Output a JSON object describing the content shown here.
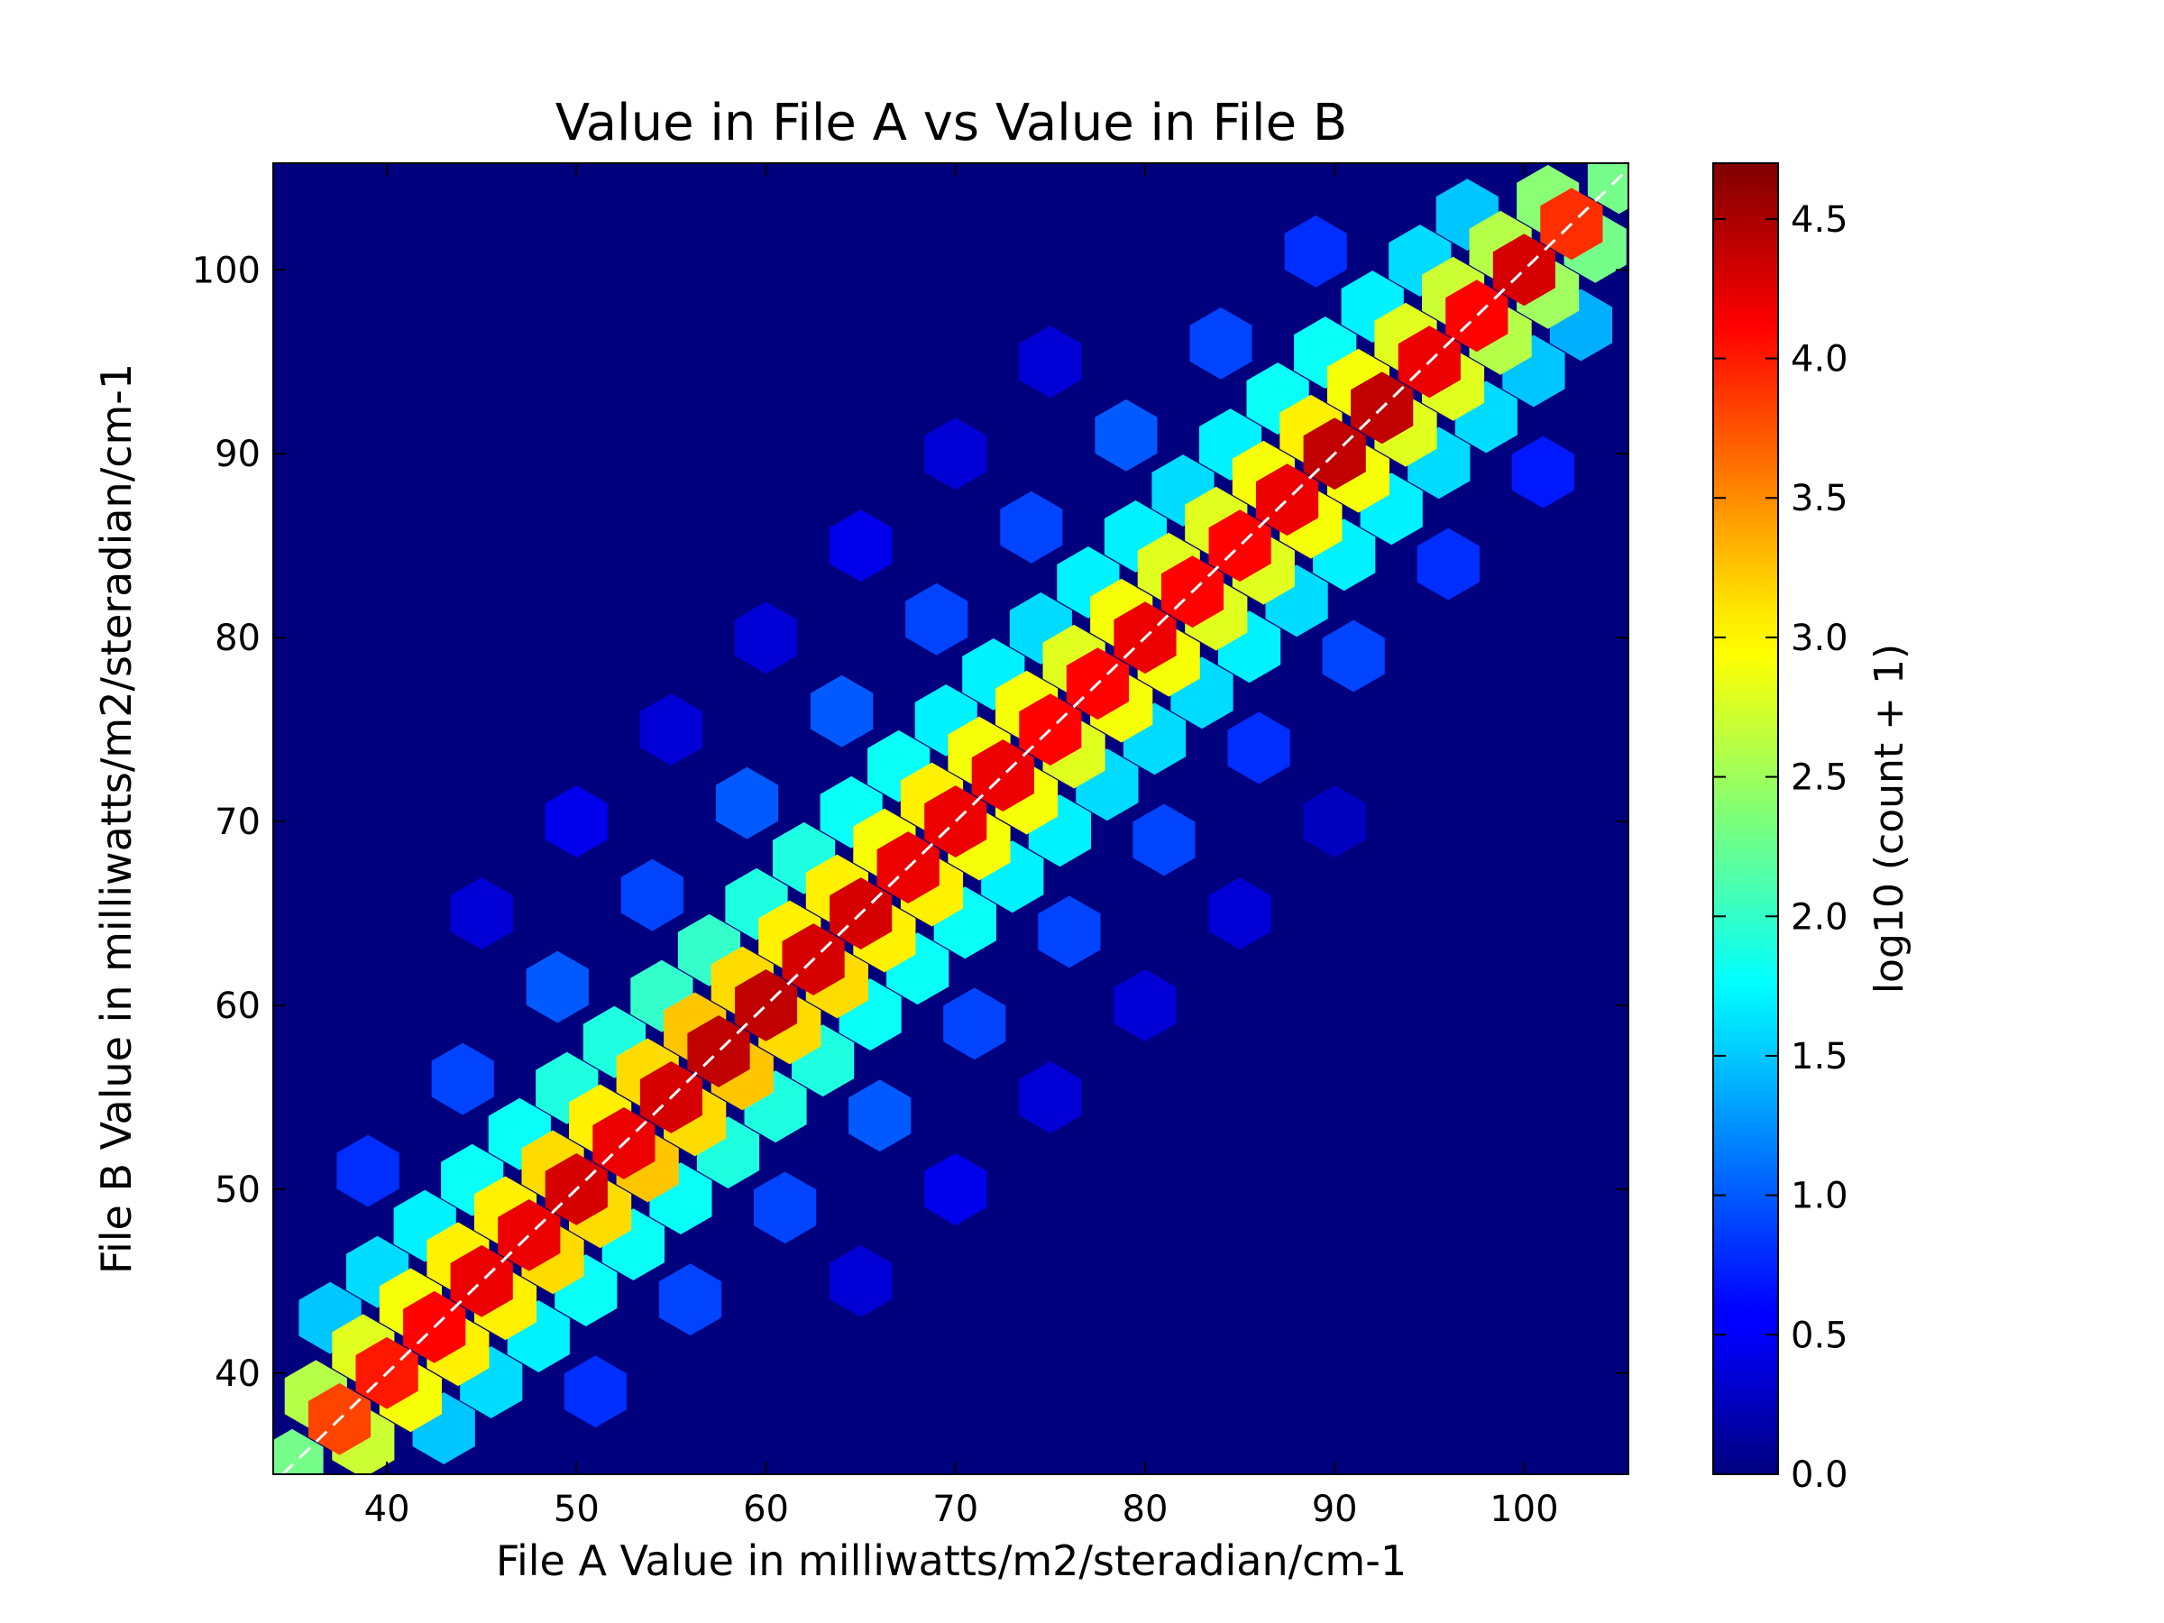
{
  "chart_data": {
    "type": "hexbin",
    "title": "Value in File A vs Value in File B",
    "x_label": "File A Value in milliwatts/m2/steradian/cm-1",
    "y_label": "File B Value in milliwatts/m2/steradian/cm-1",
    "colorbar_label": "log10 (count + 1)",
    "colormap": "jet",
    "background": "#00007f",
    "xlim": [
      34,
      105.5
    ],
    "ylim": [
      34.5,
      105.8
    ],
    "xticks": [
      40,
      50,
      60,
      70,
      80,
      90,
      100
    ],
    "yticks": [
      40,
      50,
      60,
      70,
      80,
      90,
      100
    ],
    "clim": [
      0,
      4.7
    ],
    "cticks": [
      {
        "value": 0,
        "label": "0.0"
      },
      {
        "value": 0.5,
        "label": "0.5"
      },
      {
        "value": 1,
        "label": "1.0"
      },
      {
        "value": 1.5,
        "label": "1.5"
      },
      {
        "value": 2,
        "label": "2.0"
      },
      {
        "value": 2.5,
        "label": "2.5"
      },
      {
        "value": 3,
        "label": "3.0"
      },
      {
        "value": 3.5,
        "label": "3.5"
      },
      {
        "value": 4,
        "label": "4.0"
      },
      {
        "value": 4.5,
        "label": "4.5"
      }
    ],
    "cells": [
      [
        45,
        65,
        0.4
      ],
      [
        50,
        70,
        0.5
      ],
      [
        55,
        75,
        0.4
      ],
      [
        60,
        80,
        0.4
      ],
      [
        65,
        85,
        0.5
      ],
      [
        70,
        90,
        0.4
      ],
      [
        75,
        95,
        0.4
      ],
      [
        65,
        45,
        0.4
      ],
      [
        70,
        50,
        0.5
      ],
      [
        75,
        55,
        0.4
      ],
      [
        80,
        60,
        0.4
      ],
      [
        85,
        65,
        0.4
      ],
      [
        90,
        70,
        0.3
      ],
      [
        39,
        51,
        0.8
      ],
      [
        44,
        56,
        0.9
      ],
      [
        49,
        61,
        1.0
      ],
      [
        54,
        66,
        0.9
      ],
      [
        59,
        71,
        1.0
      ],
      [
        64,
        76,
        1.0
      ],
      [
        69,
        81,
        0.9
      ],
      [
        74,
        86,
        0.9
      ],
      [
        79,
        91,
        1.0
      ],
      [
        84,
        96,
        0.9
      ],
      [
        89,
        101,
        0.8
      ],
      [
        51,
        39,
        0.8
      ],
      [
        56,
        44,
        0.9
      ],
      [
        61,
        49,
        0.9
      ],
      [
        66,
        54,
        1.0
      ],
      [
        71,
        59,
        0.9
      ],
      [
        76,
        64,
        0.9
      ],
      [
        81,
        69,
        0.9
      ],
      [
        86,
        74,
        0.8
      ],
      [
        91,
        79,
        0.9
      ],
      [
        96,
        84,
        0.8
      ],
      [
        101,
        89,
        0.7
      ],
      [
        37,
        43,
        1.5
      ],
      [
        39.5,
        45.5,
        1.6
      ],
      [
        42,
        48,
        1.7
      ],
      [
        44.5,
        50.5,
        1.8
      ],
      [
        47,
        53,
        1.8
      ],
      [
        49.5,
        55.5,
        1.9
      ],
      [
        52,
        58,
        1.9
      ],
      [
        54.5,
        60.5,
        2.0
      ],
      [
        57,
        63,
        2.0
      ],
      [
        59.5,
        65.5,
        1.9
      ],
      [
        62,
        68,
        1.9
      ],
      [
        64.5,
        70.5,
        1.8
      ],
      [
        67,
        73,
        1.8
      ],
      [
        69.5,
        75.5,
        1.7
      ],
      [
        72,
        78,
        1.7
      ],
      [
        74.5,
        80.5,
        1.6
      ],
      [
        77,
        83,
        1.7
      ],
      [
        79.5,
        85.5,
        1.7
      ],
      [
        82,
        88,
        1.6
      ],
      [
        84.5,
        90.5,
        1.7
      ],
      [
        87,
        93,
        1.8
      ],
      [
        89.5,
        95.5,
        1.8
      ],
      [
        92,
        98,
        1.7
      ],
      [
        94.5,
        100.5,
        1.6
      ],
      [
        97,
        103,
        1.5
      ],
      [
        43,
        37,
        1.5
      ],
      [
        45.5,
        39.5,
        1.6
      ],
      [
        48,
        42,
        1.7
      ],
      [
        50.5,
        44.5,
        1.8
      ],
      [
        53,
        47,
        1.8
      ],
      [
        55.5,
        49.5,
        1.8
      ],
      [
        58,
        52,
        1.9
      ],
      [
        60.5,
        54.5,
        1.9
      ],
      [
        63,
        57,
        1.9
      ],
      [
        65.5,
        59.5,
        1.8
      ],
      [
        68,
        62,
        1.8
      ],
      [
        70.5,
        64.5,
        1.8
      ],
      [
        73,
        67,
        1.7
      ],
      [
        75.5,
        69.5,
        1.7
      ],
      [
        78,
        72,
        1.6
      ],
      [
        80.5,
        74.5,
        1.6
      ],
      [
        83,
        77,
        1.6
      ],
      [
        85.5,
        79.5,
        1.7
      ],
      [
        88,
        82,
        1.6
      ],
      [
        90.5,
        84.5,
        1.7
      ],
      [
        93,
        87,
        1.7
      ],
      [
        95.5,
        89.5,
        1.6
      ],
      [
        98,
        92,
        1.6
      ],
      [
        100.5,
        94.5,
        1.5
      ],
      [
        103,
        97,
        1.4
      ],
      [
        36.25,
        38.75,
        2.6
      ],
      [
        38.75,
        41.25,
        2.8
      ],
      [
        41.25,
        43.75,
        2.9
      ],
      [
        43.75,
        46.25,
        3.0
      ],
      [
        46.25,
        48.75,
        3.0
      ],
      [
        48.75,
        51.25,
        3.1
      ],
      [
        51.25,
        53.75,
        3.0
      ],
      [
        53.75,
        56.25,
        3.1
      ],
      [
        56.25,
        58.75,
        3.2
      ],
      [
        58.75,
        61.25,
        3.1
      ],
      [
        61.25,
        63.75,
        3.0
      ],
      [
        63.75,
        66.25,
        3.0
      ],
      [
        66.25,
        68.75,
        2.9
      ],
      [
        68.75,
        71.25,
        3.0
      ],
      [
        71.25,
        73.75,
        2.9
      ],
      [
        73.75,
        76.25,
        2.9
      ],
      [
        76.25,
        78.75,
        2.8
      ],
      [
        78.75,
        81.25,
        2.9
      ],
      [
        81.25,
        83.75,
        2.8
      ],
      [
        83.75,
        86.25,
        2.8
      ],
      [
        86.25,
        88.75,
        2.9
      ],
      [
        88.75,
        91.25,
        3.0
      ],
      [
        91.25,
        93.75,
        2.9
      ],
      [
        93.75,
        96.25,
        2.8
      ],
      [
        96.25,
        98.75,
        2.7
      ],
      [
        98.75,
        101.25,
        2.6
      ],
      [
        101.25,
        103.75,
        2.4
      ],
      [
        38.75,
        36.25,
        2.7
      ],
      [
        41.25,
        38.75,
        2.9
      ],
      [
        43.75,
        41.25,
        3.0
      ],
      [
        46.25,
        43.75,
        3.0
      ],
      [
        48.75,
        46.25,
        3.1
      ],
      [
        51.25,
        48.75,
        3.1
      ],
      [
        53.75,
        51.25,
        3.2
      ],
      [
        56.25,
        53.75,
        3.1
      ],
      [
        58.75,
        56.25,
        3.2
      ],
      [
        61.25,
        58.75,
        3.1
      ],
      [
        63.75,
        61.25,
        3.1
      ],
      [
        66.25,
        63.75,
        3.0
      ],
      [
        68.75,
        66.25,
        3.0
      ],
      [
        71.25,
        68.75,
        2.9
      ],
      [
        73.75,
        71.25,
        2.9
      ],
      [
        76.25,
        73.75,
        2.8
      ],
      [
        78.75,
        76.25,
        2.9
      ],
      [
        81.25,
        78.75,
        2.9
      ],
      [
        83.75,
        81.25,
        2.8
      ],
      [
        86.25,
        83.75,
        2.8
      ],
      [
        88.75,
        86.25,
        2.9
      ],
      [
        91.25,
        88.75,
        2.9
      ],
      [
        93.75,
        91.25,
        2.8
      ],
      [
        96.25,
        93.75,
        2.8
      ],
      [
        98.75,
        96.25,
        2.6
      ],
      [
        101.25,
        98.75,
        2.5
      ],
      [
        103.75,
        101.25,
        2.3
      ],
      [
        35,
        35,
        2.3
      ],
      [
        37.5,
        37.5,
        3.8
      ],
      [
        40,
        40,
        4.0
      ],
      [
        42.5,
        42.5,
        4.1
      ],
      [
        45,
        45,
        4.2
      ],
      [
        47.5,
        47.5,
        4.2
      ],
      [
        50,
        50,
        4.3
      ],
      [
        52.5,
        52.5,
        4.2
      ],
      [
        55,
        55,
        4.3
      ],
      [
        57.5,
        57.5,
        4.4
      ],
      [
        60,
        60,
        4.4
      ],
      [
        62.5,
        62.5,
        4.3
      ],
      [
        65,
        65,
        4.3
      ],
      [
        67.5,
        67.5,
        4.2
      ],
      [
        70,
        70,
        4.2
      ],
      [
        72.5,
        72.5,
        4.2
      ],
      [
        75,
        75,
        4.1
      ],
      [
        77.5,
        77.5,
        4.1
      ],
      [
        80,
        80,
        4.2
      ],
      [
        82.5,
        82.5,
        4.1
      ],
      [
        85,
        85,
        4.1
      ],
      [
        87.5,
        87.5,
        4.2
      ],
      [
        90,
        90,
        4.4
      ],
      [
        92.5,
        92.5,
        4.4
      ],
      [
        95,
        95,
        4.2
      ],
      [
        97.5,
        97.5,
        4.1
      ],
      [
        100,
        100,
        4.3
      ],
      [
        102.5,
        102.5,
        3.9
      ],
      [
        105,
        105,
        2.3
      ]
    ]
  }
}
